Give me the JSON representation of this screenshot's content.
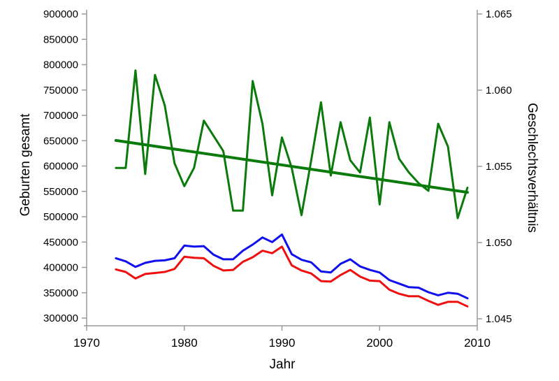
{
  "chart_data": {
    "type": "line",
    "xlabel": "Jahr",
    "ylabel_left": "Geburten gesamt",
    "ylabel_right": "Geschlechtsverhältnis",
    "xlim": [
      1970,
      2010
    ],
    "ylim_left": [
      300000,
      900000
    ],
    "ylim_right": [
      1.045,
      1.065
    ],
    "x_ticks": [
      "1970",
      "1980",
      "1990",
      "2000",
      "2010"
    ],
    "y_left_ticks": [
      "300000",
      "350000",
      "400000",
      "450000",
      "500000",
      "550000",
      "600000",
      "650000",
      "700000",
      "750000",
      "800000",
      "850000",
      "900000"
    ],
    "y_right_ticks": [
      "1.045",
      "1.050",
      "1.055",
      "1.060",
      "1.065"
    ],
    "grid": false,
    "legend": "none",
    "series": [
      {
        "axis": "left",
        "color": "#1010ee",
        "x": [
          1973,
          1974,
          1975,
          1976,
          1977,
          1978,
          1979,
          1980,
          1981,
          1982,
          1983,
          1984,
          1985,
          1986,
          1987,
          1988,
          1989,
          1990,
          1991,
          1992,
          1993,
          1994,
          1995,
          1996,
          1997,
          1998,
          1999,
          2000,
          2001,
          2002,
          2003,
          2004,
          2005,
          2006,
          2007,
          2008,
          2009
        ],
        "values": [
          418000,
          412000,
          401000,
          409000,
          413000,
          414000,
          418000,
          443000,
          441000,
          442000,
          425000,
          416000,
          416000,
          433000,
          445000,
          459000,
          450000,
          465000,
          426000,
          415000,
          410000,
          392000,
          390000,
          407000,
          416000,
          402000,
          395000,
          390000,
          375000,
          368000,
          361000,
          360000,
          351000,
          345000,
          350000,
          348000,
          339000
        ]
      },
      {
        "axis": "left",
        "color": "#ee1010",
        "x": [
          1973,
          1974,
          1975,
          1976,
          1977,
          1978,
          1979,
          1980,
          1981,
          1982,
          1983,
          1984,
          1985,
          1986,
          1987,
          1988,
          1989,
          1990,
          1991,
          1992,
          1993,
          1994,
          1995,
          1996,
          1997,
          1998,
          1999,
          2000,
          2001,
          2002,
          2003,
          2004,
          2005,
          2006,
          2007,
          2008,
          2009
        ],
        "values": [
          396000,
          391000,
          378000,
          387000,
          389000,
          391000,
          397000,
          421000,
          419000,
          418000,
          403000,
          394000,
          395000,
          411000,
          420000,
          433000,
          428000,
          441000,
          404000,
          394000,
          388000,
          373000,
          372000,
          385000,
          395000,
          382000,
          374000,
          373000,
          356000,
          348000,
          343000,
          343000,
          334000,
          326000,
          332000,
          332000,
          323000
        ]
      },
      {
        "axis": "right",
        "color": "#0a7a0a",
        "x": [
          1973,
          1974,
          1975,
          1976,
          1977,
          1978,
          1979,
          1980,
          1981,
          1982,
          1983,
          1984,
          1985,
          1986,
          1987,
          1988,
          1989,
          1990,
          1991,
          1992,
          1993,
          1994,
          1995,
          1996,
          1997,
          1998,
          1999,
          2000,
          2001,
          2002,
          2003,
          2004,
          2005,
          2006,
          2007,
          2008,
          2009
        ],
        "values": [
          1.0549,
          1.0549,
          1.0613,
          1.0545,
          1.061,
          1.059,
          1.0552,
          1.0537,
          1.0549,
          1.058,
          1.057,
          1.056,
          1.0521,
          1.0521,
          1.0606,
          1.0578,
          1.0531,
          1.0569,
          1.0549,
          1.0518,
          1.0554,
          1.0592,
          1.0544,
          1.0579,
          1.0554,
          1.0546,
          1.0582,
          1.0525,
          1.0579,
          1.0555,
          1.0546,
          1.0539,
          1.0534,
          1.0578,
          1.0563,
          1.0516,
          1.0536
        ]
      },
      {
        "axis": "right",
        "color": "#0a7a0a",
        "trend": true,
        "x": [
          1973,
          2009
        ],
        "values": [
          1.0567,
          1.0533
        ]
      }
    ]
  }
}
